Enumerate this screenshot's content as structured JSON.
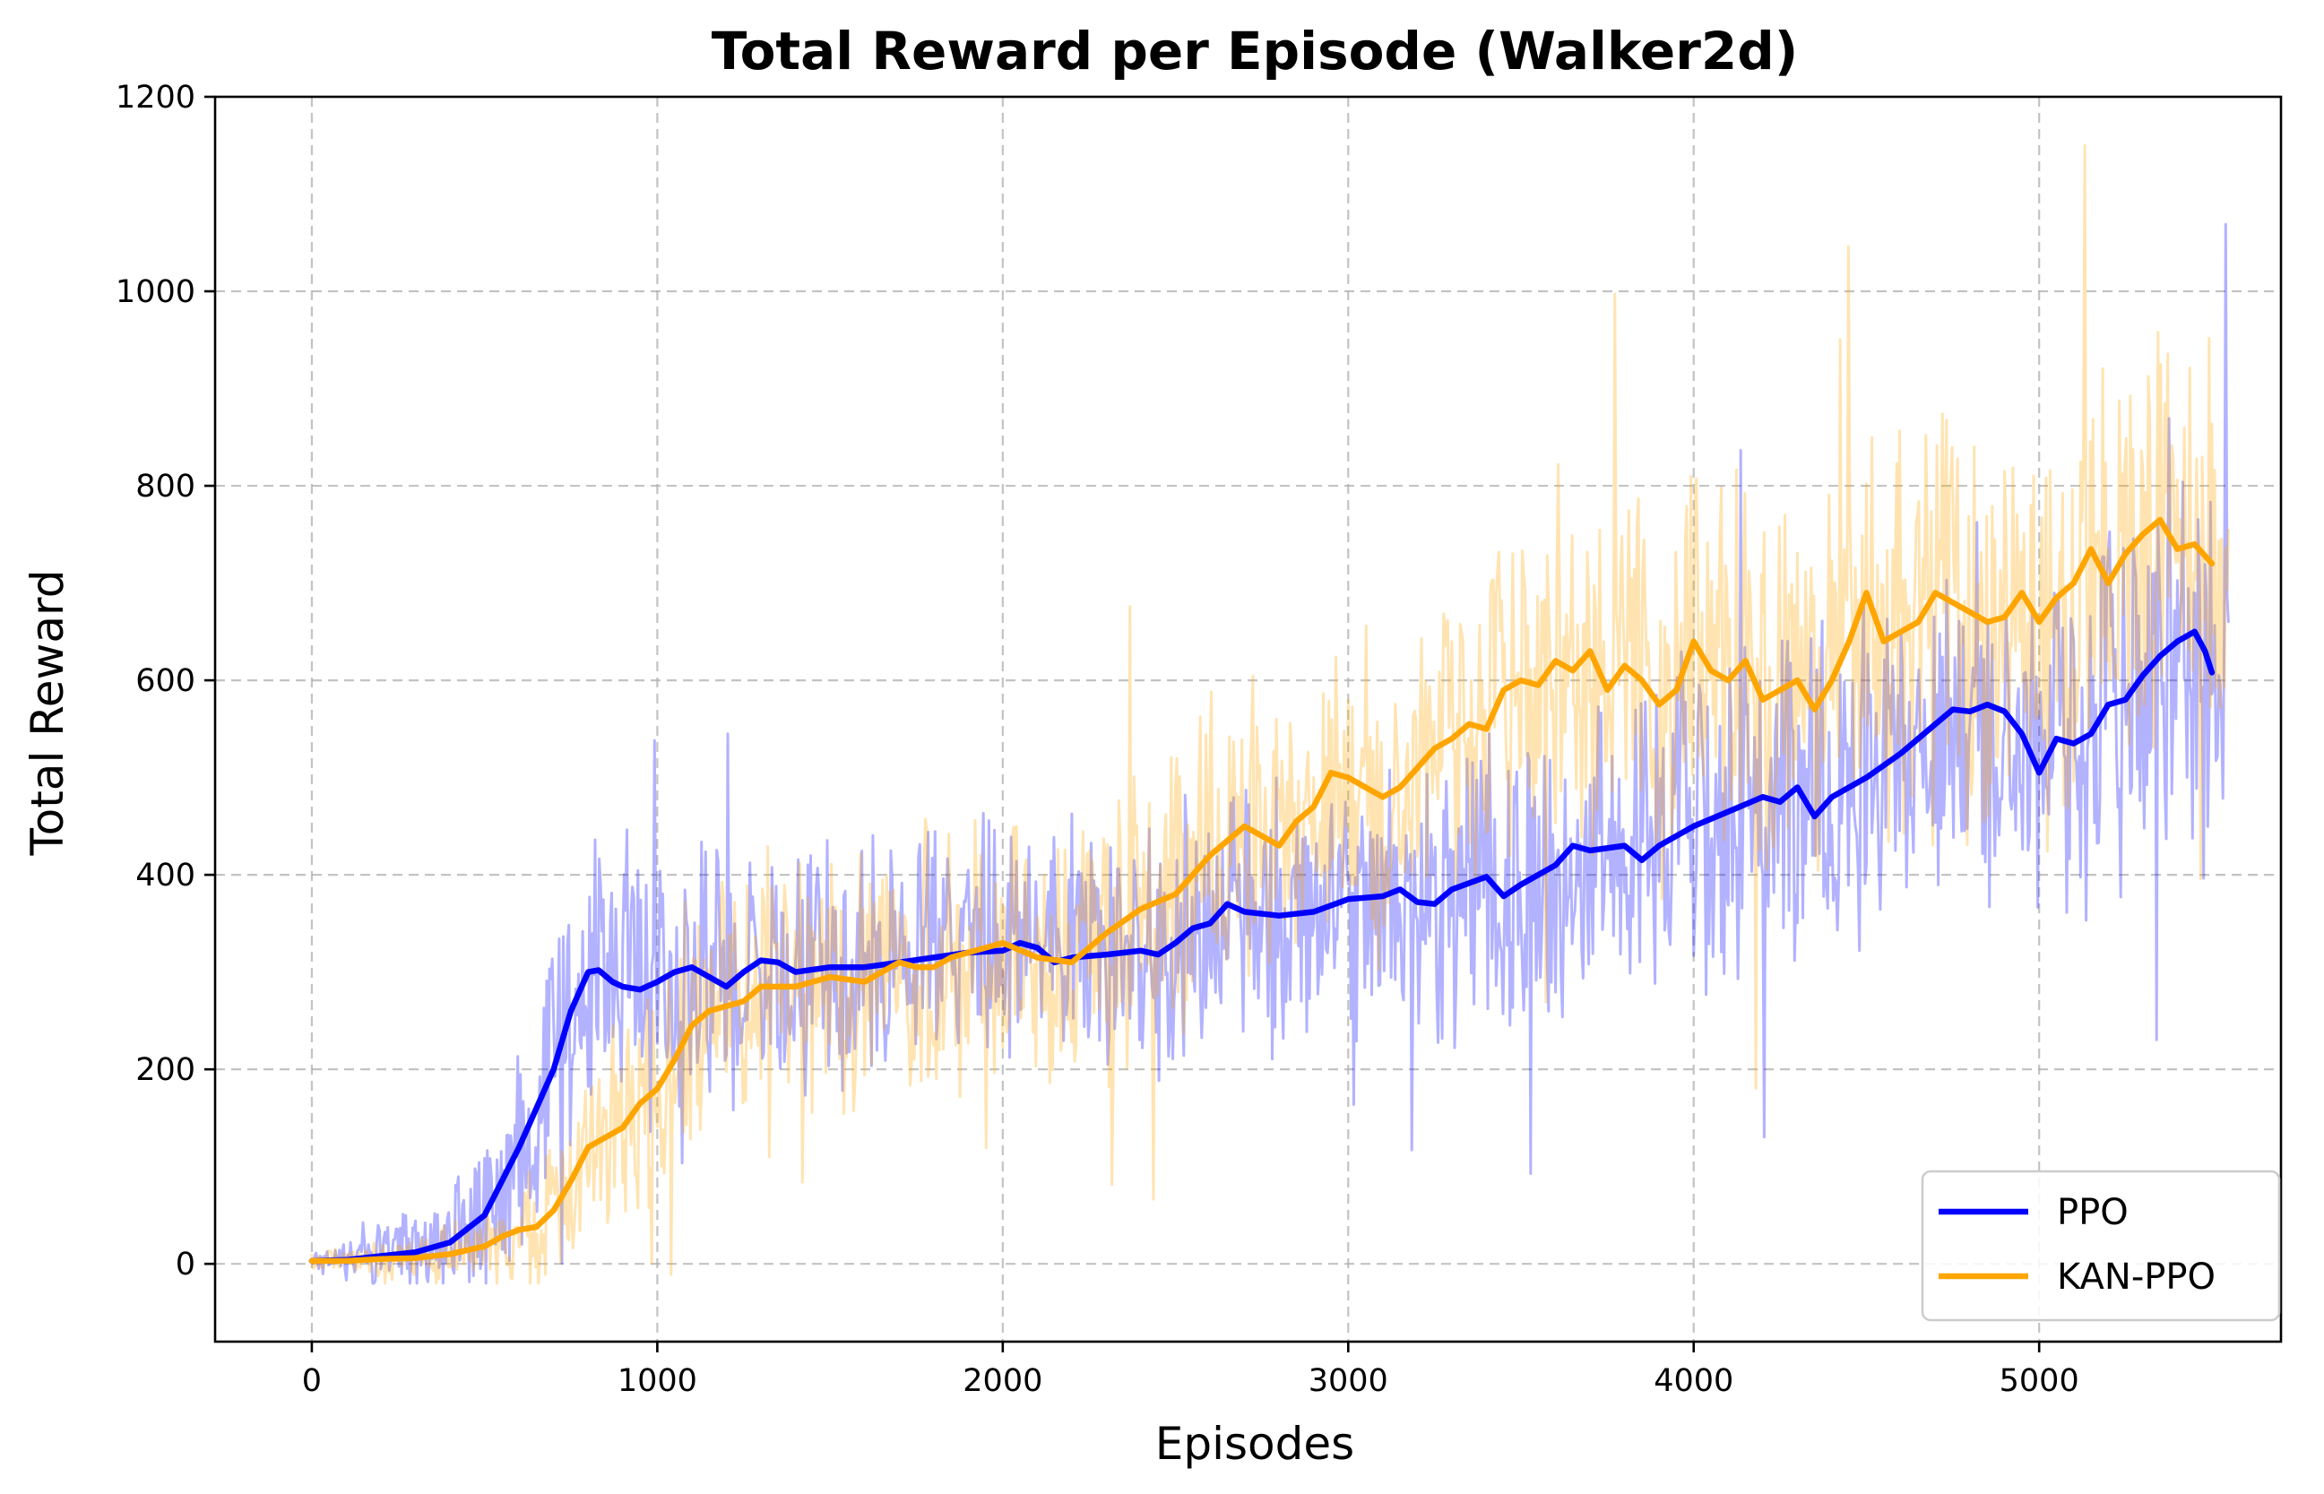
{
  "chart_data": {
    "type": "line",
    "title": "Total Reward per Episode (Walker2d)",
    "xlabel": "Episodes",
    "ylabel": "Total Reward",
    "xlim": [
      -280,
      5700
    ],
    "ylim": [
      -80,
      1200
    ],
    "xticks": [
      0,
      1000,
      2000,
      3000,
      4000,
      5000
    ],
    "yticks": [
      0,
      200,
      400,
      600,
      800,
      1000,
      1200
    ],
    "grid": true,
    "legend_position": "lower right",
    "series": [
      {
        "name": "PPO",
        "color": "#0000ff",
        "raw_color": "#0000ff",
        "raw_opacity": 0.3,
        "raw_noise": {
          "episodes": [
            0,
            500,
            800,
            1500,
            3000,
            4500,
            5550
          ],
          "spread": [
            15,
            90,
            170,
            150,
            160,
            220,
            260
          ]
        },
        "x": [
          0,
          100,
          200,
          300,
          400,
          500,
          600,
          650,
          700,
          750,
          800,
          830,
          870,
          900,
          950,
          1000,
          1050,
          1100,
          1150,
          1200,
          1250,
          1300,
          1350,
          1400,
          1500,
          1600,
          1700,
          1800,
          1900,
          2000,
          2050,
          2100,
          2150,
          2200,
          2300,
          2400,
          2450,
          2500,
          2550,
          2600,
          2650,
          2700,
          2800,
          2900,
          3000,
          3100,
          3150,
          3200,
          3250,
          3300,
          3400,
          3450,
          3500,
          3600,
          3650,
          3700,
          3800,
          3850,
          3900,
          4000,
          4100,
          4200,
          4250,
          4300,
          4350,
          4400,
          4500,
          4600,
          4700,
          4750,
          4800,
          4850,
          4900,
          4950,
          5000,
          5050,
          5100,
          5150,
          5200,
          5250,
          5300,
          5350,
          5400,
          5450,
          5480,
          5500
        ],
        "y": [
          3,
          4,
          8,
          12,
          22,
          50,
          120,
          160,
          200,
          260,
          300,
          302,
          290,
          285,
          282,
          290,
          300,
          305,
          295,
          285,
          300,
          312,
          310,
          300,
          305,
          305,
          310,
          315,
          320,
          322,
          330,
          325,
          310,
          315,
          318,
          322,
          318,
          330,
          345,
          350,
          370,
          362,
          358,
          362,
          375,
          378,
          385,
          372,
          370,
          385,
          398,
          378,
          390,
          410,
          430,
          425,
          430,
          415,
          430,
          450,
          465,
          480,
          475,
          490,
          460,
          480,
          500,
          525,
          555,
          570,
          568,
          575,
          568,
          545,
          505,
          540,
          535,
          545,
          575,
          580,
          605,
          625,
          640,
          650,
          630,
          608
        ]
      },
      {
        "name": "KAN-PPO",
        "color": "#ffa500",
        "raw_color": "#ffa500",
        "raw_opacity": 0.3,
        "raw_noise": {
          "episodes": [
            0,
            500,
            900,
            1500,
            3000,
            4000,
            5550
          ],
          "spread": [
            12,
            40,
            140,
            150,
            200,
            230,
            260
          ]
        },
        "x": [
          0,
          100,
          200,
          300,
          400,
          500,
          550,
          600,
          650,
          700,
          750,
          800,
          850,
          900,
          950,
          1000,
          1050,
          1100,
          1150,
          1200,
          1250,
          1300,
          1400,
          1500,
          1600,
          1700,
          1750,
          1800,
          1850,
          1900,
          2000,
          2100,
          2200,
          2300,
          2400,
          2500,
          2600,
          2700,
          2800,
          2850,
          2900,
          2950,
          3000,
          3050,
          3100,
          3150,
          3200,
          3250,
          3300,
          3350,
          3400,
          3450,
          3500,
          3550,
          3600,
          3650,
          3700,
          3750,
          3800,
          3850,
          3900,
          3950,
          4000,
          4050,
          4100,
          4150,
          4200,
          4250,
          4300,
          4350,
          4400,
          4450,
          4500,
          4550,
          4600,
          4650,
          4700,
          4750,
          4800,
          4850,
          4900,
          4950,
          5000,
          5050,
          5100,
          5150,
          5200,
          5250,
          5300,
          5350,
          5400,
          5450,
          5500
        ],
        "y": [
          3,
          3,
          5,
          6,
          10,
          18,
          28,
          35,
          38,
          55,
          85,
          120,
          130,
          140,
          165,
          180,
          210,
          245,
          260,
          265,
          270,
          285,
          285,
          295,
          290,
          310,
          305,
          305,
          315,
          320,
          330,
          315,
          310,
          340,
          365,
          380,
          420,
          450,
          430,
          455,
          470,
          505,
          500,
          490,
          480,
          490,
          510,
          530,
          540,
          555,
          550,
          590,
          600,
          595,
          620,
          610,
          630,
          590,
          615,
          600,
          575,
          590,
          640,
          610,
          600,
          620,
          580,
          590,
          600,
          570,
          600,
          640,
          690,
          640,
          650,
          660,
          690,
          680,
          670,
          660,
          665,
          690,
          660,
          685,
          700,
          735,
          700,
          730,
          750,
          765,
          735,
          740,
          720
        ]
      }
    ]
  }
}
